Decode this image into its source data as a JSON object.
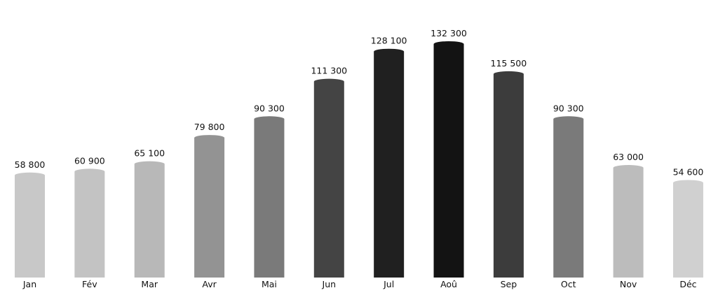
{
  "chart_data": {
    "type": "bar",
    "categories": [
      "Jan",
      "Fév",
      "Mar",
      "Avr",
      "Mai",
      "Jun",
      "Jul",
      "Aoû",
      "Sep",
      "Oct",
      "Nov",
      "Déc"
    ],
    "values": [
      58800,
      60900,
      65100,
      79800,
      90300,
      111300,
      128100,
      132300,
      115500,
      90300,
      63000,
      54600
    ],
    "value_labels": [
      "58 800",
      "60 900",
      "65 100",
      "79 800",
      "90 300",
      "111 300",
      "128 100",
      "132 300",
      "115 500",
      "90 300",
      "63 000",
      "54 600"
    ],
    "colors": [
      "#c8c8c8",
      "#c3c3c3",
      "#b8b8b8",
      "#939393",
      "#7a7a7a",
      "#444444",
      "#202020",
      "#131313",
      "#3c3c3c",
      "#7a7a7a",
      "#bcbcbc",
      "#d0d0d0"
    ],
    "ylim": [
      0,
      140000
    ],
    "grid": false,
    "legend": "none"
  }
}
